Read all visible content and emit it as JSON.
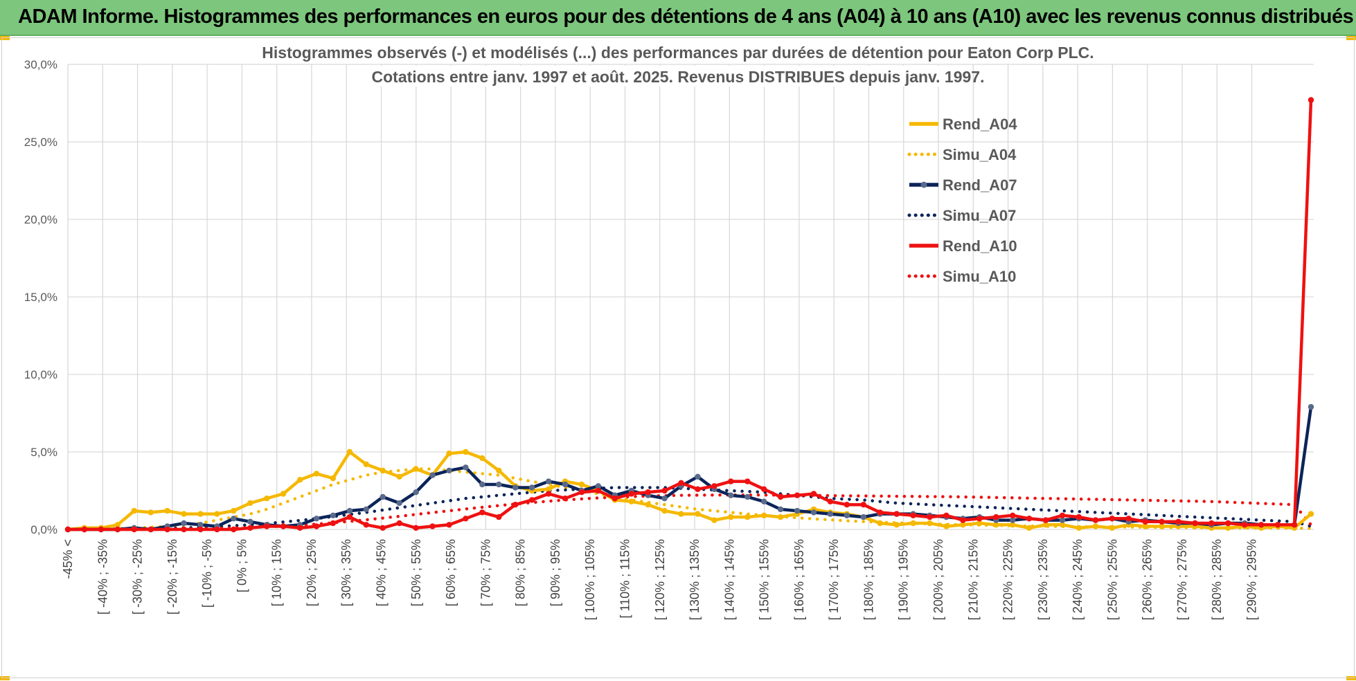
{
  "banner": {
    "title": "ADAM Informe. Histogrammes des performances en euros pour des détentions de 4 ans (A04) à 10 ans (A10) avec les revenus connus distribués"
  },
  "colors": {
    "banner_bg": "#7dc67d",
    "A04": "#f5b800",
    "A07": "#0c2459",
    "A10": "#ee1111",
    "grid": "#d9d9d9"
  },
  "chart_data": {
    "type": "line",
    "title": "Histogrammes observés (-) et modélisés (...) des performances par durées de détention pour Eaton Corp PLC.",
    "subtitle": "Cotations entre janv. 1997 et août. 2025. Revenus DISTRIBUES depuis janv. 1997.",
    "ylim": [
      0,
      30
    ],
    "yticks": [
      "0,0%",
      "5,0%",
      "10,0%",
      "15,0%",
      "20,0%",
      "25,0%",
      "30,0%"
    ],
    "grid": true,
    "legend_position": "right",
    "x_labels": [
      "-45% <",
      "[ -40% ; -35%",
      "[ -30% ; -25%",
      "[ -20% ; -15%",
      "[ -10% ; -5%",
      "[ 0% ; 5%",
      "[ 10% ; 15%",
      "[ 20% ; 25%",
      "[ 30% ; 35%",
      "[ 40% ; 45%",
      "[ 50% ; 55%",
      "[ 60% ; 65%",
      "[ 70% ; 75%",
      "[ 80% ; 85%",
      "[ 90% ; 95%",
      "[ 100% ; 105%",
      "[ 110% ; 115%",
      "[ 120% ; 125%",
      "[ 130% ; 135%",
      "[ 140% ; 145%",
      "[ 150% ; 155%",
      "[ 160% ; 165%",
      "[ 170% ; 175%",
      "[ 180% ; 185%",
      "[ 190% ; 195%",
      "[ 200% ; 205%",
      "[ 210% ; 215%",
      "[ 220% ; 225%",
      "[ 230% ; 235%",
      "[ 240% ; 245%",
      "[ 250% ; 255%",
      "[ 260% ; 265%",
      "[ 270% ; 275%",
      "[ 280% ; 285%",
      "[ 290% ; 295%"
    ],
    "series": [
      {
        "name": "Rend_A04",
        "style": "solid",
        "color": "#f5b800",
        "values": [
          0.0,
          0.1,
          0.1,
          0.3,
          1.2,
          1.1,
          1.2,
          1.0,
          1.0,
          1.0,
          1.2,
          1.7,
          2.0,
          2.3,
          3.2,
          3.6,
          3.3,
          5.0,
          4.2,
          3.8,
          3.4,
          3.9,
          3.5,
          4.9,
          5.0,
          4.6,
          3.8,
          2.8,
          2.5,
          2.6,
          3.1,
          2.9,
          2.5,
          1.9,
          1.8,
          1.6,
          1.2,
          1.0,
          1.0,
          0.6,
          0.8,
          0.8,
          0.9,
          0.8,
          1.0,
          1.3,
          1.1,
          1.0,
          0.8,
          0.4,
          0.3,
          0.4,
          0.4,
          0.2,
          0.3,
          0.4,
          0.3,
          0.3,
          0.1,
          0.3,
          0.3,
          0.1,
          0.2,
          0.1,
          0.3,
          0.2,
          0.2,
          0.2,
          0.2,
          0.1,
          0.1,
          0.2,
          0.1,
          0.2,
          0.1,
          1.0
        ]
      },
      {
        "name": "Simu_A04",
        "style": "dotted",
        "color": "#f5b800",
        "values": [
          0.0,
          0.02,
          0.04,
          0.06,
          0.09,
          0.14,
          0.2,
          0.3,
          0.4,
          0.6,
          0.8,
          1.0,
          1.3,
          1.7,
          2.1,
          2.5,
          2.9,
          3.2,
          3.5,
          3.7,
          3.8,
          3.9,
          3.9,
          3.8,
          3.7,
          3.6,
          3.5,
          3.3,
          3.1,
          2.9,
          2.7,
          2.5,
          2.3,
          2.1,
          1.9,
          1.75,
          1.6,
          1.45,
          1.3,
          1.2,
          1.1,
          1.0,
          0.9,
          0.82,
          0.75,
          0.68,
          0.62,
          0.56,
          0.51,
          0.47,
          0.43,
          0.39,
          0.36,
          0.33,
          0.3,
          0.28,
          0.26,
          0.24,
          0.22,
          0.2,
          0.19,
          0.18,
          0.17,
          0.16,
          0.15,
          0.14,
          0.13,
          0.12,
          0.11,
          0.1,
          0.1,
          0.09,
          0.09,
          0.08,
          0.08,
          0.07
        ]
      },
      {
        "name": "Rend_A07",
        "style": "solid",
        "color": "#0c2459",
        "values": [
          0.0,
          0.0,
          0.0,
          0.0,
          0.1,
          0.0,
          0.2,
          0.4,
          0.3,
          0.2,
          0.7,
          0.5,
          0.3,
          0.2,
          0.3,
          0.7,
          0.9,
          1.2,
          1.3,
          2.1,
          1.7,
          2.4,
          3.5,
          3.8,
          4.0,
          2.9,
          2.9,
          2.7,
          2.7,
          3.1,
          2.9,
          2.5,
          2.8,
          2.2,
          2.5,
          2.2,
          2.0,
          2.8,
          3.4,
          2.6,
          2.2,
          2.1,
          1.8,
          1.3,
          1.2,
          1.1,
          1.0,
          0.9,
          0.8,
          1.0,
          1.0,
          1.0,
          0.9,
          0.8,
          0.7,
          0.8,
          0.6,
          0.6,
          0.7,
          0.6,
          0.6,
          0.7,
          0.6,
          0.7,
          0.5,
          0.6,
          0.5,
          0.4,
          0.4,
          0.3,
          0.4,
          0.4,
          0.3,
          0.3,
          0.3,
          7.9
        ]
      },
      {
        "name": "Simu_A07",
        "style": "dotted",
        "color": "#0c2459",
        "values": [
          0.0,
          0.0,
          0.01,
          0.02,
          0.03,
          0.05,
          0.07,
          0.1,
          0.14,
          0.18,
          0.24,
          0.3,
          0.38,
          0.48,
          0.58,
          0.7,
          0.83,
          0.97,
          1.1,
          1.25,
          1.4,
          1.55,
          1.7,
          1.85,
          2.0,
          2.1,
          2.2,
          2.3,
          2.4,
          2.5,
          2.55,
          2.6,
          2.65,
          2.7,
          2.7,
          2.7,
          2.7,
          2.65,
          2.6,
          2.55,
          2.5,
          2.45,
          2.4,
          2.3,
          2.2,
          2.1,
          2.0,
          1.95,
          1.9,
          1.8,
          1.7,
          1.65,
          1.6,
          1.55,
          1.5,
          1.45,
          1.4,
          1.35,
          1.3,
          1.25,
          1.2,
          1.15,
          1.1,
          1.05,
          1.0,
          0.95,
          0.9,
          0.85,
          0.8,
          0.75,
          0.7,
          0.65,
          0.6,
          0.55,
          0.5,
          0.2
        ]
      },
      {
        "name": "Rend_A10",
        "style": "solid",
        "color": "#ee1111",
        "values": [
          0.0,
          0.0,
          0.0,
          0.0,
          0.0,
          0.0,
          0.0,
          0.0,
          0.0,
          0.0,
          0.0,
          0.1,
          0.2,
          0.2,
          0.1,
          0.2,
          0.4,
          0.8,
          0.3,
          0.1,
          0.4,
          0.1,
          0.2,
          0.3,
          0.7,
          1.1,
          0.8,
          1.6,
          1.9,
          2.3,
          2.0,
          2.4,
          2.5,
          2.0,
          2.3,
          2.4,
          2.5,
          3.0,
          2.6,
          2.8,
          3.1,
          3.1,
          2.6,
          2.1,
          2.2,
          2.3,
          1.8,
          1.6,
          1.6,
          1.1,
          1.0,
          0.9,
          0.8,
          0.9,
          0.6,
          0.7,
          0.8,
          0.9,
          0.7,
          0.6,
          0.9,
          0.8,
          0.6,
          0.7,
          0.7,
          0.5,
          0.5,
          0.5,
          0.4,
          0.4,
          0.4,
          0.3,
          0.3,
          0.3,
          0.3,
          27.7
        ]
      },
      {
        "name": "Simu_A10",
        "style": "dotted",
        "color": "#ee1111",
        "values": [
          0.0,
          0.0,
          0.0,
          0.0,
          0.0,
          0.01,
          0.02,
          0.03,
          0.05,
          0.07,
          0.1,
          0.13,
          0.17,
          0.22,
          0.28,
          0.35,
          0.43,
          0.52,
          0.62,
          0.73,
          0.85,
          0.97,
          1.09,
          1.2,
          1.32,
          1.43,
          1.54,
          1.64,
          1.73,
          1.82,
          1.9,
          1.97,
          2.03,
          2.08,
          2.12,
          2.15,
          2.18,
          2.2,
          2.21,
          2.22,
          2.22,
          2.22,
          2.22,
          2.21,
          2.2,
          2.19,
          2.18,
          2.17,
          2.16,
          2.15,
          2.14,
          2.13,
          2.12,
          2.11,
          2.1,
          2.08,
          2.06,
          2.04,
          2.02,
          2.0,
          1.98,
          1.96,
          1.94,
          1.92,
          1.9,
          1.88,
          1.86,
          1.84,
          1.82,
          1.8,
          1.76,
          1.72,
          1.68,
          1.64,
          1.6,
          0.3
        ]
      }
    ]
  }
}
